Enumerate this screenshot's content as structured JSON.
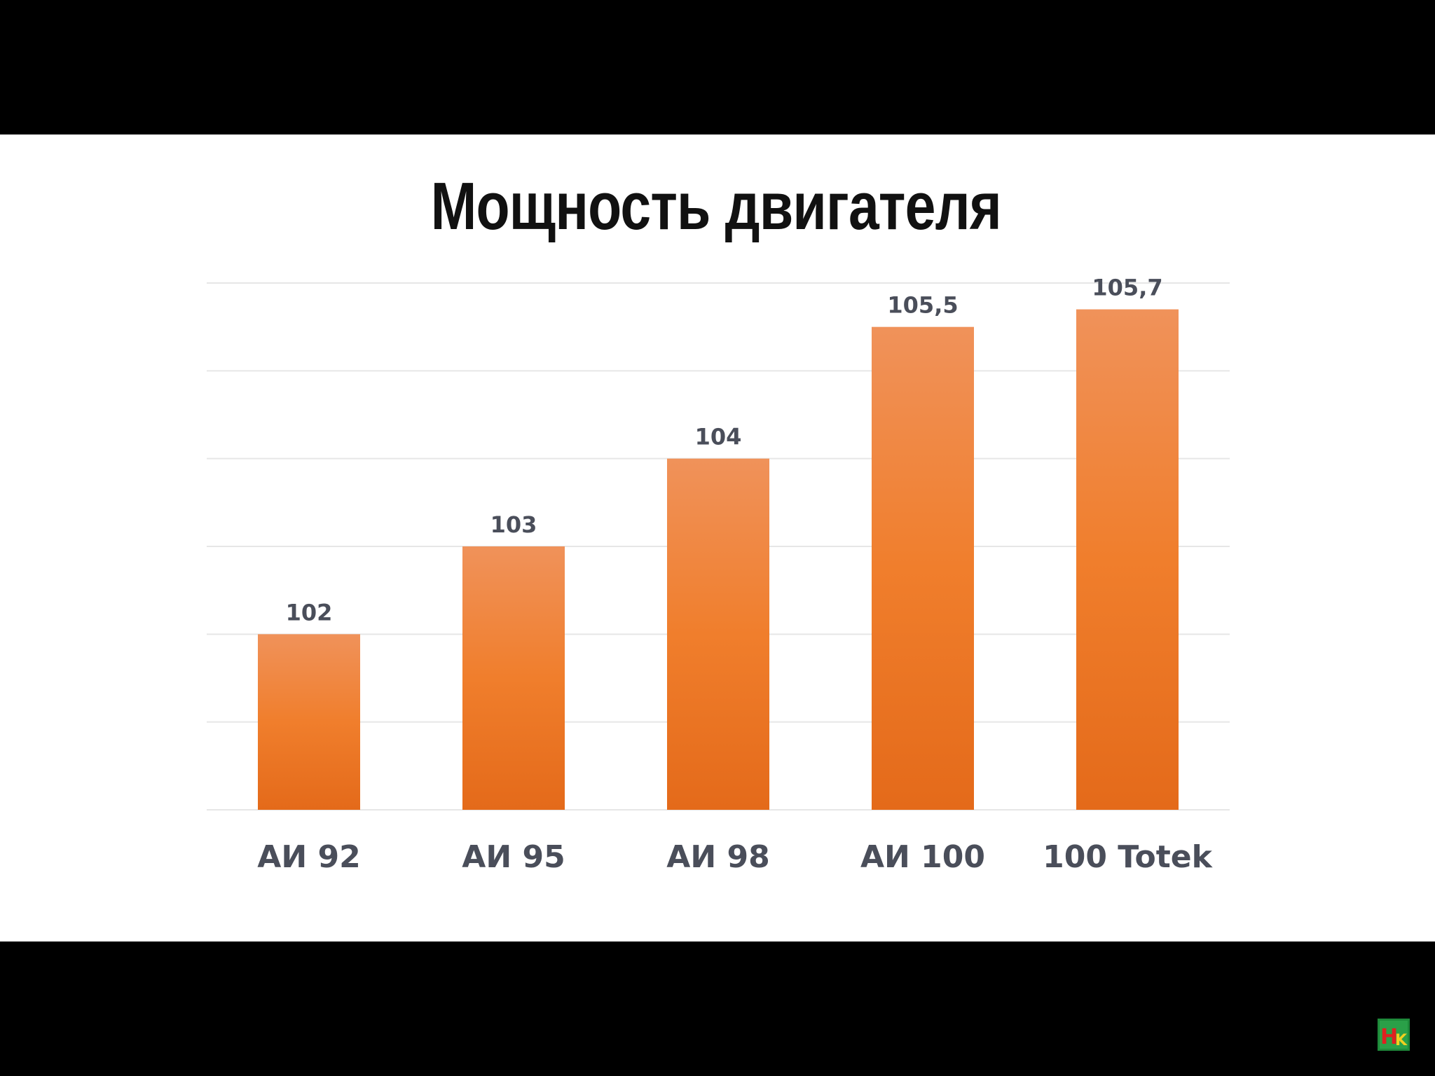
{
  "chart_data": {
    "type": "bar",
    "title": "Мощность двигателя",
    "categories": [
      "АИ 92",
      "АИ 95",
      "АИ 98",
      "АИ 100",
      "100 Totek"
    ],
    "values": [
      102,
      103,
      104,
      105.5,
      105.7
    ],
    "value_labels": [
      "102",
      "103",
      "104",
      "105,5",
      "105,7"
    ],
    "ylim": [
      100,
      106
    ],
    "grid": true,
    "legend": "none",
    "colors": {
      "bar_top": "#f0925a",
      "bar_mid": "#f07e2c",
      "bar_bottom": "#e46a1a",
      "grid": "#e6e6e6",
      "label": "#4a4e5a"
    }
  },
  "watermark": {
    "text": "HK",
    "colors": {
      "bg": "#1e8a3a",
      "h": "#e02020",
      "k": "#f0d020"
    }
  }
}
